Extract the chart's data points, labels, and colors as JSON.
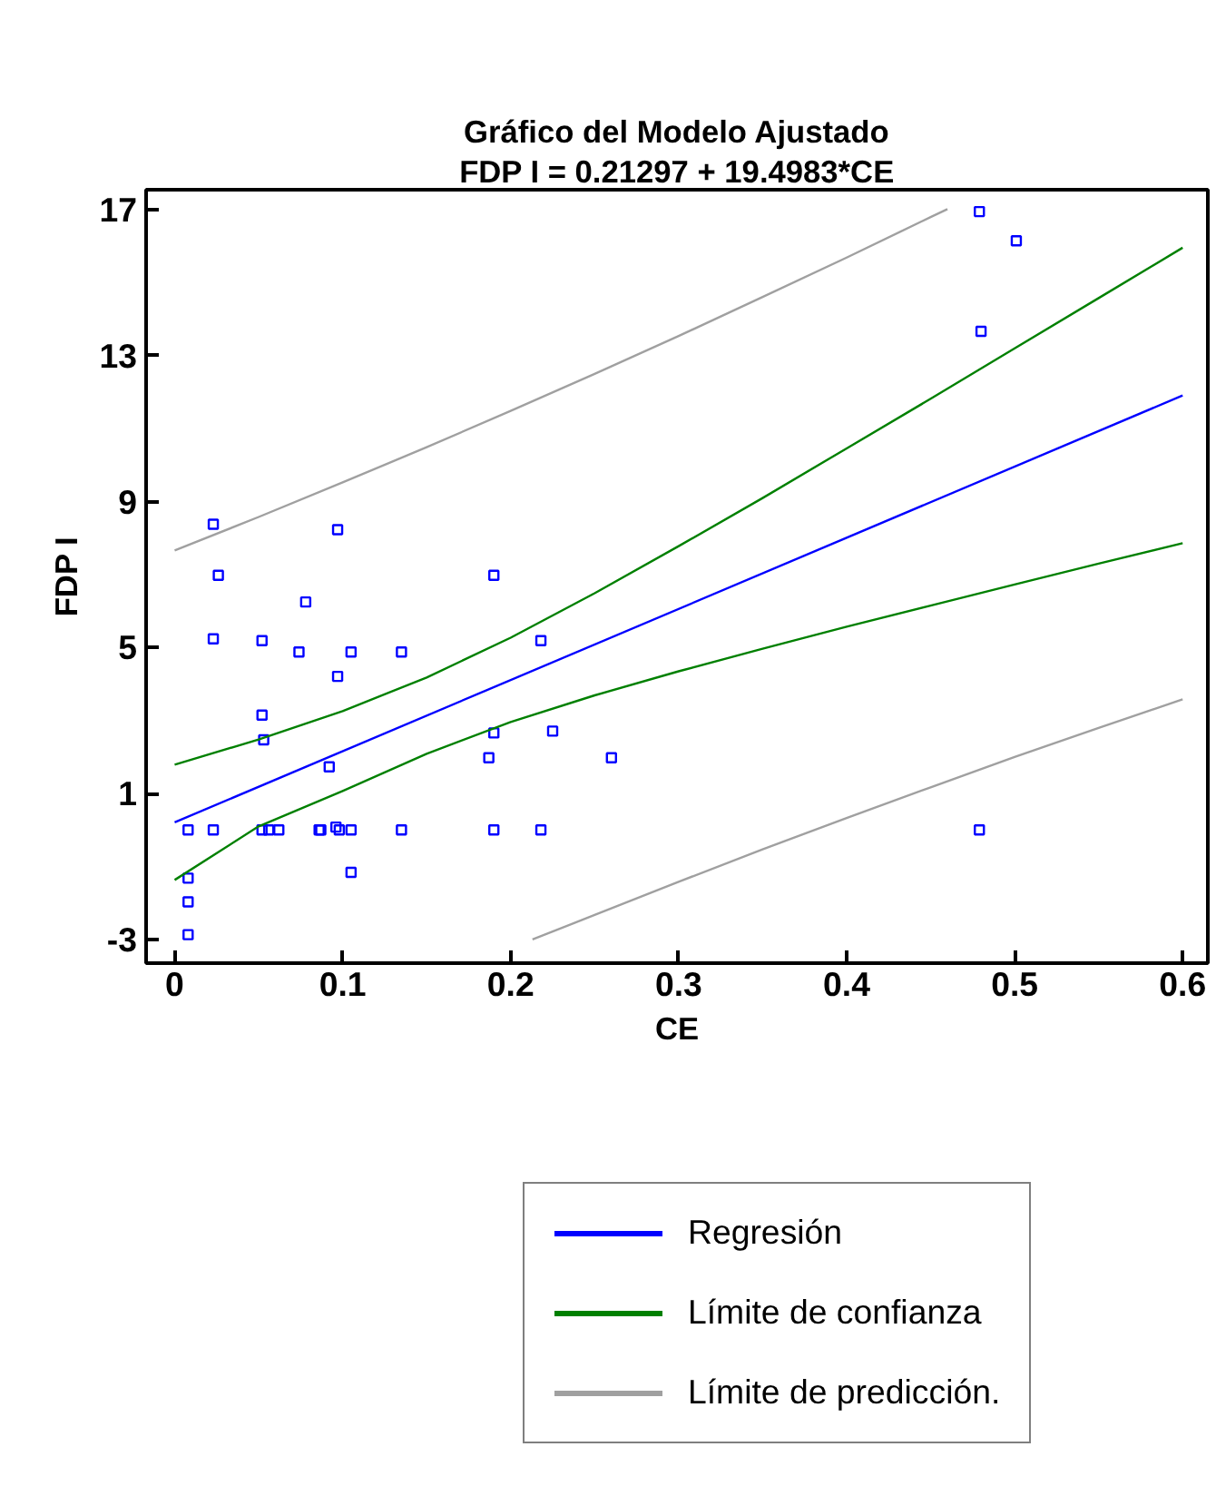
{
  "chart_data": {
    "type": "scatter",
    "title": "Gráfico del Modelo Ajustado",
    "subtitle": "FDP I = 0.21297 + 19.4983*CE",
    "xlabel": "CE",
    "ylabel": "FDP I",
    "xlim": [
      -0.017,
      0.615
    ],
    "ylim": [
      -3.65,
      17.55
    ],
    "xticks": [
      0,
      0.1,
      0.2,
      0.3,
      0.4,
      0.5,
      0.6
    ],
    "yticks": [
      -3,
      1,
      5,
      9,
      13,
      17
    ],
    "grid": false,
    "legend": "bottom",
    "series": [
      {
        "type": "scatter",
        "marker": "square",
        "color": "#0000ff",
        "x": [
          0.023,
          0.097,
          0.026,
          0.19,
          0.078,
          0.023,
          0.052,
          0.074,
          0.105,
          0.135,
          0.097,
          0.052,
          0.053,
          0.092,
          0.187,
          0.19,
          0.225,
          0.26,
          0.218,
          0.008,
          0.023,
          0.052,
          0.056,
          0.062,
          0.086,
          0.087,
          0.098,
          0.105,
          0.135,
          0.19,
          0.218,
          0.479,
          0.096,
          0.105,
          0.008,
          0.008,
          0.008,
          0.479,
          0.501,
          0.48
        ],
        "values": [
          8.38,
          8.23,
          6.98,
          6.98,
          6.25,
          5.24,
          5.19,
          4.88,
          4.88,
          4.88,
          4.21,
          3.15,
          2.47,
          1.73,
          1.98,
          2.66,
          2.71,
          1.98,
          5.19,
          0.0,
          0.0,
          0.0,
          0.0,
          0.0,
          0.0,
          0.0,
          0.0,
          0.0,
          0.0,
          0.0,
          0.0,
          0.0,
          0.08,
          -1.16,
          -1.32,
          -1.97,
          -2.87,
          16.95,
          16.15,
          13.67
        ]
      },
      {
        "type": "line",
        "name": "Regresión",
        "color": "#0000ff",
        "x": [
          0,
          0.6
        ],
        "values": [
          0.21,
          11.91
        ]
      },
      {
        "type": "line",
        "name": "Límite de confianza",
        "color": "#008000",
        "x": [
          0,
          0.05,
          0.1,
          0.15,
          0.2,
          0.25,
          0.3,
          0.35,
          0.4,
          0.45,
          0.5,
          0.55,
          0.6
        ],
        "values": [
          1.79,
          2.48,
          3.26,
          4.18,
          5.27,
          6.49,
          7.78,
          9.1,
          10.46,
          11.82,
          13.2,
          14.58,
          15.96
        ]
      },
      {
        "type": "line",
        "color": "#008000",
        "x": [
          0,
          0.05,
          0.1,
          0.15,
          0.2,
          0.25,
          0.3,
          0.35,
          0.4,
          0.45,
          0.5,
          0.55,
          0.6
        ],
        "values": [
          -1.37,
          0.1,
          1.07,
          2.09,
          2.96,
          3.69,
          4.35,
          4.97,
          5.57,
          6.15,
          6.73,
          7.3,
          7.86
        ]
      },
      {
        "type": "line",
        "name": "Límite de predicción.",
        "color": "#a0a0a0",
        "x": [
          0,
          0.05,
          0.1,
          0.15,
          0.2,
          0.25,
          0.3,
          0.35,
          0.4,
          0.45,
          0.46
        ],
        "values": [
          7.66,
          8.58,
          9.53,
          10.49,
          11.49,
          12.5,
          13.54,
          14.61,
          15.69,
          16.8,
          17.02
        ]
      },
      {
        "type": "line",
        "color": "#a0a0a0",
        "x": [
          0.213,
          0.25,
          0.3,
          0.35,
          0.4,
          0.45,
          0.5,
          0.55,
          0.6
        ],
        "values": [
          -3.0,
          -2.33,
          -1.42,
          -0.53,
          0.33,
          1.17,
          2.0,
          2.8,
          3.58
        ]
      }
    ]
  }
}
